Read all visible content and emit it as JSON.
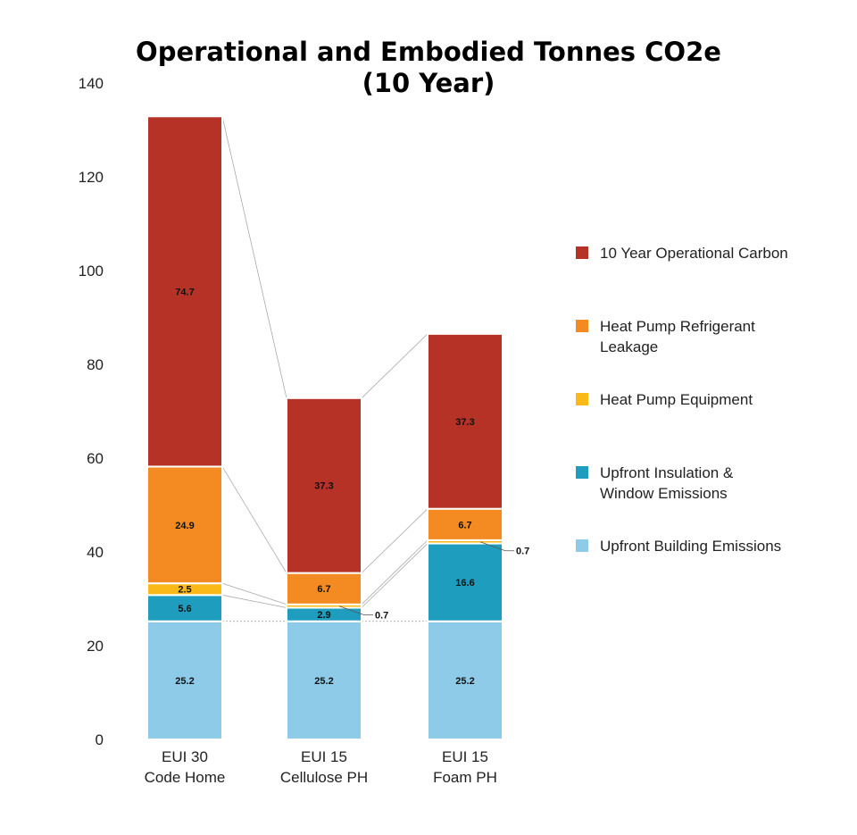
{
  "chart_data": {
    "type": "bar",
    "stacked": true,
    "title": [
      "Operational and Embodied Tonnes CO2e",
      "(10 Year)"
    ],
    "xlabel": "",
    "ylabel": "",
    "ylim": [
      0,
      140
    ],
    "yticks": [
      0,
      20,
      40,
      60,
      80,
      100,
      120,
      140
    ],
    "grid": false,
    "legend_position": "right",
    "categories": [
      [
        "EUI 30",
        "Code Home"
      ],
      [
        "EUI 15",
        "Cellulose PH"
      ],
      [
        "EUI 15",
        "Foam PH"
      ]
    ],
    "series": [
      {
        "name": "Upfront Building Emissions",
        "legend": [
          "Upfront Building Emissions"
        ],
        "color": "#8ECBE9",
        "values": [
          25.2,
          25.2,
          25.2
        ]
      },
      {
        "name": "Upfront Insulation & Window Emissions",
        "legend": [
          "Upfront Insulation &",
          "Window Emissions"
        ],
        "color": "#1F9DBE",
        "values": [
          5.6,
          2.9,
          16.6
        ]
      },
      {
        "name": "Heat Pump Equipment",
        "legend": [
          "Heat Pump Equipment"
        ],
        "color": "#FBB918",
        "values": [
          2.5,
          0.7,
          0.7
        ]
      },
      {
        "name": "Heat Pump Refrigerant Leakage",
        "legend": [
          "Heat Pump Refrigerant",
          "Leakage"
        ],
        "color": "#F38A22",
        "values": [
          24.9,
          6.7,
          6.7
        ]
      },
      {
        "name": "10 Year Operational Carbon",
        "legend": [
          "10 Year Operational Carbon"
        ],
        "color": "#B73226",
        "values": [
          74.7,
          37.3,
          37.3
        ]
      }
    ]
  }
}
